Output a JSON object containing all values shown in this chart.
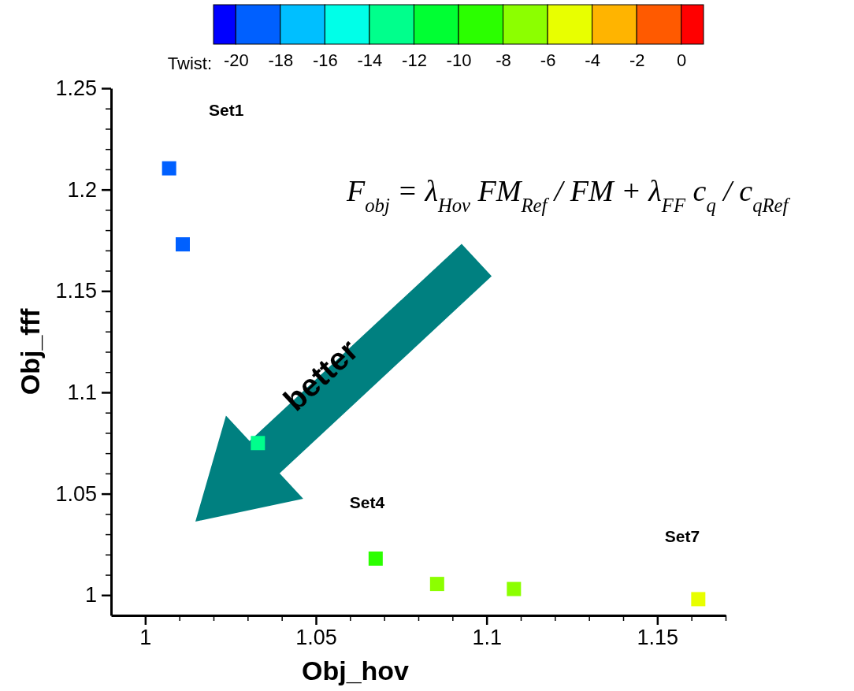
{
  "chart_data": {
    "type": "scatter",
    "xlabel": "Obj_hov",
    "ylabel": "Obj_fff",
    "clabel": "Twist:",
    "x": [
      1.007,
      1.011,
      1.033,
      1.0675,
      1.0855,
      1.108,
      1.162
    ],
    "values": [
      1.2105,
      1.173,
      1.075,
      1.018,
      1.0055,
      1.003,
      0.998
    ],
    "cvalues": [
      -19,
      -19,
      -13,
      -9,
      -7,
      -7,
      -5
    ],
    "clim": [
      -21,
      1
    ],
    "cticks": [
      -20,
      -18,
      -16,
      -14,
      -12,
      -10,
      -8,
      -6,
      -4,
      -2,
      0
    ],
    "marker": "square",
    "xlim": [
      0.99,
      1.17
    ],
    "xticks": [
      1,
      {
        "value": 1.01,
        "label": null
      },
      {
        "value": 1.02,
        "label": null
      },
      {
        "value": 1.03,
        "label": null
      },
      {
        "value": 1.04,
        "label": null
      },
      1.05,
      {
        "value": 1.06,
        "label": null
      },
      {
        "value": 1.07,
        "label": null
      },
      {
        "value": 1.08,
        "label": null
      },
      {
        "value": 1.09,
        "label": null
      },
      1.1,
      {
        "value": 1.11,
        "label": null
      },
      {
        "value": 1.12,
        "label": null
      },
      {
        "value": 1.13,
        "label": null
      },
      {
        "value": 1.14,
        "label": null
      },
      1.15,
      {
        "value": 1.16,
        "label": null
      },
      {
        "value": 1.17,
        "label": null
      }
    ],
    "ylim": [
      0.99,
      1.25
    ],
    "yticks": [
      1,
      {
        "value": 1.01,
        "label": null
      },
      {
        "value": 1.02,
        "label": null
      },
      {
        "value": 1.03,
        "label": null
      },
      {
        "value": 1.04,
        "label": null
      },
      1.05,
      {
        "value": 1.06,
        "label": null
      },
      {
        "value": 1.07,
        "label": null
      },
      {
        "value": 1.08,
        "label": null
      },
      {
        "value": 1.09,
        "label": null
      },
      1.1,
      {
        "value": 1.11,
        "label": null
      },
      {
        "value": 1.12,
        "label": null
      },
      {
        "value": 1.13,
        "label": null
      },
      {
        "value": 1.14,
        "label": null
      },
      1.15,
      {
        "value": 1.16,
        "label": null
      },
      {
        "value": 1.17,
        "label": null
      },
      {
        "value": 1.18,
        "label": null
      },
      {
        "value": 1.19,
        "label": null
      },
      1.2,
      {
        "value": 1.21,
        "label": null
      },
      {
        "value": 1.22,
        "label": null
      },
      {
        "value": 1.23,
        "label": null
      },
      {
        "value": 1.24,
        "label": null
      },
      1.25
    ],
    "annotations": [
      "F$_{obj}$ = λ$_{Hov}$ FM$_{Ref}$ / FM + λ$_{FF}$ c$_{q}$ / c$_{qRef}$",
      "better",
      "Set1",
      "Set4",
      "Set7"
    ]
  }
}
